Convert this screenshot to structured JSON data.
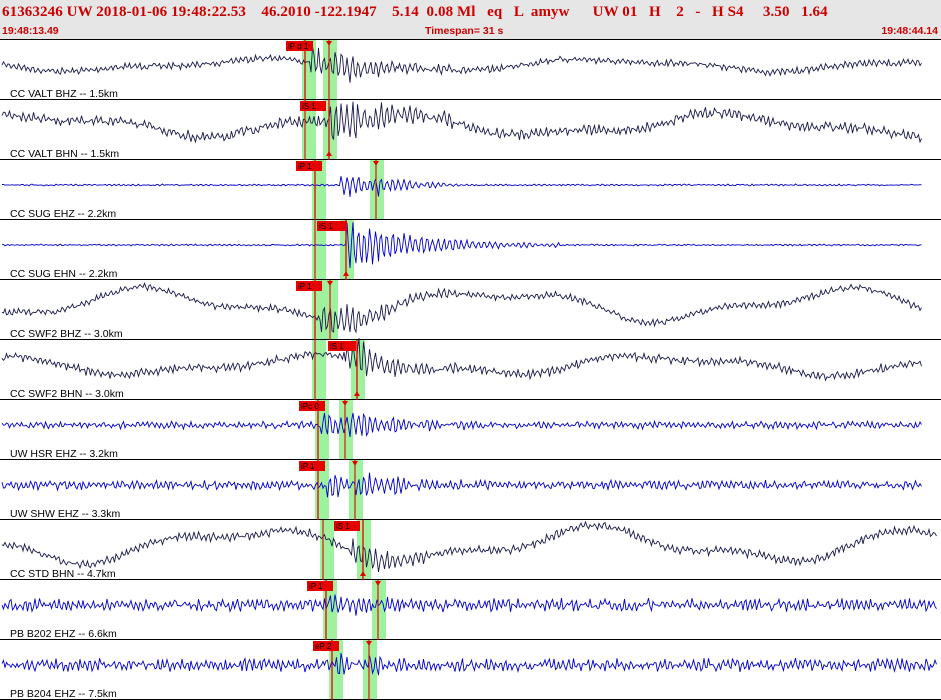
{
  "header": {
    "title": "61363246 UW 2018-01-06 19:48:22.53    46.2010 -122.1947    5.14  0.08 Ml   eq   L  amyw      UW 01   H    2   -   H S4     3.50   1.64",
    "start_time": "19:48:13.49",
    "timespan": "Timespan=  31 s",
    "end_time": "19:48:44.14"
  },
  "colors": {
    "header_bg": "#e6e6e6",
    "header_text": "#cc0000",
    "trace_dark": "#1a1a4d",
    "trace_blue": "#0000cc",
    "pick_red": "#e60000",
    "window_green": "#9ef29e"
  },
  "traces": [
    {
      "label": "CC VALT BHZ -- 1.5km",
      "color": "dark",
      "p_label": "iP d 1",
      "s_label": ""
    },
    {
      "label": "CC VALT BHN -- 1.5km",
      "color": "dark",
      "p_label": "",
      "s_label": "iS 1"
    },
    {
      "label": "CC SUG EHZ -- 2.2km",
      "color": "blue",
      "p_label": "iP 1",
      "s_label": ""
    },
    {
      "label": "CC SUG EHN -- 2.2km",
      "color": "blue",
      "p_label": "",
      "s_label": "iS 1"
    },
    {
      "label": "CC SWF2 BHZ -- 3.0km",
      "color": "dark",
      "p_label": "iP 1",
      "s_label": ""
    },
    {
      "label": "CC SWF2 BHN -- 3.0km",
      "color": "dark",
      "p_label": "",
      "s_label": "iS 1"
    },
    {
      "label": "UW HSR EHZ -- 3.2km",
      "color": "blue",
      "p_label": "iPc 0",
      "s_label": ""
    },
    {
      "label": "UW SHW EHZ -- 3.3km",
      "color": "blue",
      "p_label": "iP 1",
      "s_label": ""
    },
    {
      "label": "CC STD BHN -- 4.7km",
      "color": "dark",
      "p_label": "",
      "s_label": "iS 1"
    },
    {
      "label": "PB B202 EHZ -- 6.6km",
      "color": "blue",
      "p_label": "iP 1",
      "s_label": ""
    },
    {
      "label": "PB B204 EHZ -- 7.5km",
      "color": "blue",
      "p_label": "eP 2",
      "s_label": ""
    }
  ]
}
